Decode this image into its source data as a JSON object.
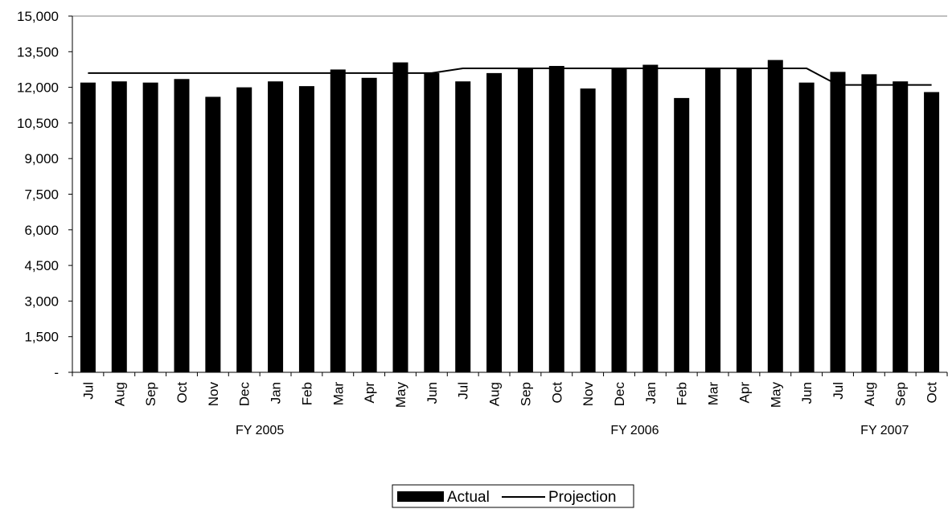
{
  "chart_data": {
    "type": "bar",
    "title": "",
    "xlabel": "",
    "ylabel": "",
    "ylim": [
      0,
      15000
    ],
    "yticks": [
      0,
      1500,
      3000,
      4500,
      6000,
      7500,
      9000,
      10500,
      12000,
      13500,
      15000
    ],
    "ytick_labels": [
      "-",
      "1,500",
      "3,000",
      "4,500",
      "6,000",
      "7,500",
      "9,000",
      "10,500",
      "12,000",
      "13,500",
      "15,000"
    ],
    "categories": [
      "Jul",
      "Aug",
      "Sep",
      "Oct",
      "Nov",
      "Dec",
      "Jan",
      "Feb",
      "Mar",
      "Apr",
      "May",
      "Jun",
      "Jul",
      "Aug",
      "Sep",
      "Oct",
      "Nov",
      "Dec",
      "Jan",
      "Feb",
      "Mar",
      "Apr",
      "May",
      "Jun",
      "Jul",
      "Aug",
      "Sep",
      "Oct"
    ],
    "groups": [
      {
        "label": "FY 2005",
        "start": 0,
        "end": 11
      },
      {
        "label": "FY 2006",
        "start": 12,
        "end": 23
      },
      {
        "label": "FY 2007",
        "start": 24,
        "end": 27
      }
    ],
    "series": [
      {
        "name": "Actual",
        "kind": "bar",
        "color": "#000000",
        "values": [
          12200,
          12250,
          12200,
          12350,
          11600,
          12000,
          12250,
          12050,
          12750,
          12400,
          13050,
          12600,
          12250,
          12600,
          12800,
          12900,
          11950,
          12800,
          12950,
          11550,
          12800,
          12800,
          13150,
          12200,
          12650,
          12550,
          12250,
          11800
        ]
      },
      {
        "name": "Projection",
        "kind": "line",
        "color": "#000000",
        "values": [
          12600,
          12600,
          12600,
          12600,
          12600,
          12600,
          12600,
          12600,
          12600,
          12600,
          12600,
          12600,
          12800,
          12800,
          12800,
          12800,
          12800,
          12800,
          12800,
          12800,
          12800,
          12800,
          12800,
          12800,
          12100,
          12100,
          12100,
          12100
        ]
      }
    ],
    "grid": false,
    "legend_position": "bottom"
  }
}
